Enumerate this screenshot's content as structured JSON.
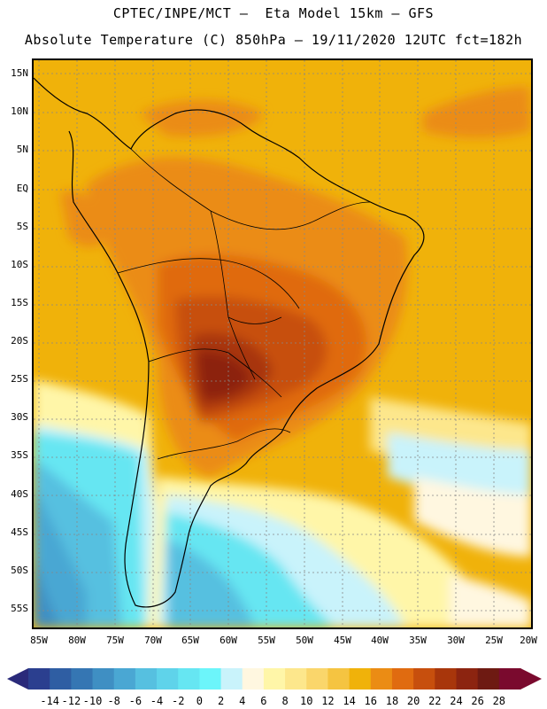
{
  "header": {
    "line1": "CPTEC/INPE/MCT –  Eta Model 15km – GFS",
    "line2": "Absolute Temperature (C) 850hPa – 19/11/2020 12UTC fct=182h"
  },
  "map": {
    "lat_labels": [
      "15N",
      "10N",
      "5N",
      "EQ",
      "5S",
      "10S",
      "15S",
      "20S",
      "25S",
      "30S",
      "35S",
      "40S",
      "45S",
      "50S",
      "55S"
    ],
    "lon_labels": [
      "85W",
      "80W",
      "75W",
      "70W",
      "65W",
      "60W",
      "55W",
      "50W",
      "45W",
      "40W",
      "35W",
      "30W",
      "25W",
      "20W"
    ],
    "grid": "dotted"
  },
  "colorbar": {
    "labels": [
      "-14",
      "-12",
      "-10",
      "-8",
      "-6",
      "-4",
      "-2",
      "0",
      "2",
      "4",
      "6",
      "8",
      "10",
      "12",
      "14",
      "16",
      "18",
      "20",
      "22",
      "24",
      "26",
      "28"
    ],
    "colors": [
      "#2b3f8f",
      "#2f5ea3",
      "#3576b3",
      "#3f8fc3",
      "#4aa7d3",
      "#56c0e0",
      "#5fd3ea",
      "#66e6f2",
      "#6cf5fa",
      "#c9f3fb",
      "#fff7e0",
      "#fff6a8",
      "#fde78c",
      "#fad66b",
      "#f5c441",
      "#f0b20a",
      "#eb8c14",
      "#e06b10",
      "#c74f0d",
      "#a8360b",
      "#8c2410",
      "#6e1a12",
      "#7a0a2e"
    ],
    "arrow_left": "#2a2a7a",
    "arrow_right": "#7a0a2e"
  }
}
